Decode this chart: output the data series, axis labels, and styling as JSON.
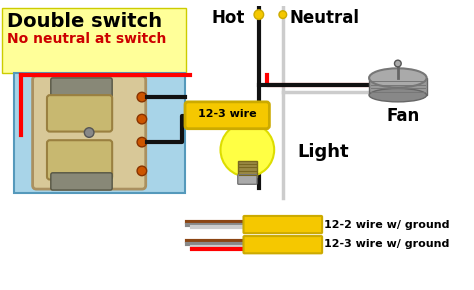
{
  "bg_color": "#ffffff",
  "title_line1": "Double switch",
  "title_line2": "No neutral at switch",
  "title_bg_color": "#ffff99",
  "switch_box_color": "#a8d4e8",
  "switch_body_color": "#d8c898",
  "switch_toggle_color": "#c8b870",
  "wire_red": "#ff0000",
  "wire_black": "#111111",
  "wire_white": "#cccccc",
  "wire_yellow": "#f5c800",
  "fan_color": "#888888",
  "bulb_color": "#ffff44",
  "label_hot": "Hot",
  "label_neutral": "Neutral",
  "label_fan": "Fan",
  "label_light": "Light",
  "label_wire": "12-3 wire",
  "label_leg1": "12-2 wire w/ ground",
  "label_leg2": "12-3 wire w/ ground"
}
